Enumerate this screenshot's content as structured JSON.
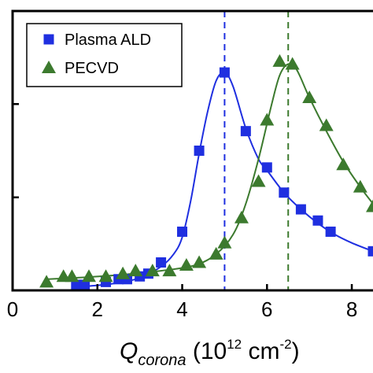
{
  "chart_data": {
    "type": "scatter",
    "title": "",
    "xlabel": {
      "symbol": "Q",
      "subscript": "corona",
      "unit_open": " (10",
      "exponent": "12",
      "unit_mid": " cm",
      "unit_exponent": "-2",
      "unit_close": ")"
    },
    "ylabel": "",
    "xlim": [
      0,
      8.5
    ],
    "ylim": [
      0,
      1.0
    ],
    "x_ticks": [
      "0",
      "2",
      "4",
      "6",
      "8"
    ],
    "x_tick_values": [
      0,
      2,
      4,
      6,
      8
    ],
    "y_tick_values": [
      0.333,
      0.667
    ],
    "y_tick_labels_cropped": true,
    "grid": false,
    "legend_position": "top-left",
    "series": [
      {
        "name": "Plasma ALD",
        "color": "#1f2fe0",
        "marker": "square",
        "points": [
          [
            1.5,
            0.02
          ],
          [
            1.7,
            0.02
          ],
          [
            2.2,
            0.03
          ],
          [
            2.5,
            0.04
          ],
          [
            2.7,
            0.04
          ],
          [
            3.0,
            0.05
          ],
          [
            3.2,
            0.06
          ],
          [
            3.5,
            0.1
          ],
          [
            4.0,
            0.21
          ],
          [
            4.4,
            0.5
          ],
          [
            5.0,
            0.78
          ],
          [
            5.5,
            0.57
          ],
          [
            6.0,
            0.44
          ],
          [
            6.4,
            0.35
          ],
          [
            6.8,
            0.29
          ],
          [
            7.2,
            0.25
          ],
          [
            7.5,
            0.21
          ],
          [
            8.5,
            0.14
          ]
        ],
        "fit": [
          [
            1.5,
            0.012
          ],
          [
            2.0,
            0.018
          ],
          [
            2.5,
            0.027
          ],
          [
            3.0,
            0.045
          ],
          [
            3.5,
            0.085
          ],
          [
            3.8,
            0.13
          ],
          [
            4.0,
            0.19
          ],
          [
            4.2,
            0.32
          ],
          [
            4.4,
            0.49
          ],
          [
            4.6,
            0.64
          ],
          [
            4.8,
            0.75
          ],
          [
            5.0,
            0.78
          ],
          [
            5.2,
            0.73
          ],
          [
            5.5,
            0.58
          ],
          [
            5.8,
            0.47
          ],
          [
            6.0,
            0.43
          ],
          [
            6.4,
            0.35
          ],
          [
            6.8,
            0.29
          ],
          [
            7.2,
            0.24
          ],
          [
            7.6,
            0.2
          ],
          [
            8.0,
            0.17
          ],
          [
            8.5,
            0.14
          ]
        ]
      },
      {
        "name": "PECVD",
        "color": "#3c7a2e",
        "marker": "triangle",
        "points": [
          [
            0.8,
            0.03
          ],
          [
            1.2,
            0.05
          ],
          [
            1.4,
            0.05
          ],
          [
            1.8,
            0.05
          ],
          [
            2.2,
            0.05
          ],
          [
            2.6,
            0.06
          ],
          [
            2.9,
            0.07
          ],
          [
            3.3,
            0.07
          ],
          [
            3.7,
            0.07
          ],
          [
            4.1,
            0.09
          ],
          [
            4.4,
            0.1
          ],
          [
            4.8,
            0.13
          ],
          [
            5.0,
            0.17
          ],
          [
            5.4,
            0.26
          ],
          [
            5.8,
            0.39
          ],
          [
            6.0,
            0.61
          ],
          [
            6.3,
            0.82
          ],
          [
            6.6,
            0.81
          ],
          [
            7.0,
            0.69
          ],
          [
            7.4,
            0.59
          ],
          [
            7.8,
            0.45
          ],
          [
            8.2,
            0.37
          ],
          [
            8.5,
            0.3
          ]
        ],
        "fit": [
          [
            0.8,
            0.04
          ],
          [
            1.5,
            0.045
          ],
          [
            2.5,
            0.055
          ],
          [
            3.5,
            0.07
          ],
          [
            4.3,
            0.09
          ],
          [
            4.8,
            0.13
          ],
          [
            5.2,
            0.2
          ],
          [
            5.5,
            0.31
          ],
          [
            5.8,
            0.47
          ],
          [
            6.1,
            0.66
          ],
          [
            6.3,
            0.77
          ],
          [
            6.5,
            0.81
          ],
          [
            6.7,
            0.79
          ],
          [
            7.0,
            0.69
          ],
          [
            7.4,
            0.57
          ],
          [
            7.8,
            0.46
          ],
          [
            8.2,
            0.37
          ],
          [
            8.5,
            0.31
          ]
        ]
      }
    ],
    "vlines": [
      {
        "x": 5.0,
        "color": "#1f2fe0",
        "style": "dashed"
      },
      {
        "x": 6.5,
        "color": "#3c7a2e",
        "style": "dashed"
      }
    ]
  }
}
